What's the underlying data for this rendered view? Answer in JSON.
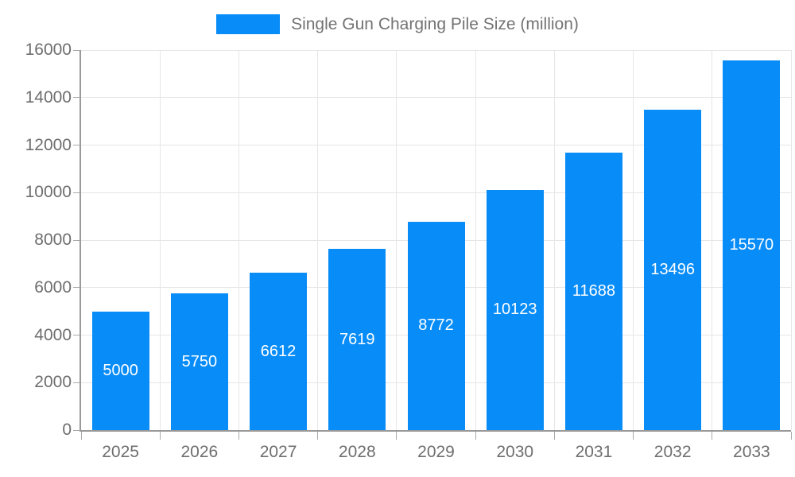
{
  "legend": {
    "label": "Single Gun Charging Pile Size (million)",
    "swatch_color": "#088cf8"
  },
  "chart_data": {
    "type": "bar",
    "title": "",
    "xlabel": "",
    "ylabel": "",
    "categories": [
      "2025",
      "2026",
      "2027",
      "2028",
      "2029",
      "2030",
      "2031",
      "2032",
      "2033"
    ],
    "series": [
      {
        "name": "Single Gun Charging Pile Size (million)",
        "values": [
          5000,
          5750,
          6612,
          7619,
          8772,
          10123,
          11688,
          13496,
          15570
        ]
      }
    ],
    "value_labels": [
      "5000",
      "5750",
      "6612",
      "7619",
      "8772",
      "10123",
      "11688",
      "13496",
      "15570"
    ],
    "ylim": [
      0,
      16000
    ],
    "ytick_step": 2000,
    "y_tick_labels": [
      "0",
      "2000",
      "4000",
      "6000",
      "8000",
      "10000",
      "12000",
      "14000",
      "16000"
    ],
    "grid": true,
    "legend_position": "top",
    "bar_color": "#088cf8",
    "value_label_color": "#ffffff"
  },
  "colors": {
    "bar": "#088cf8",
    "gridline": "#e6e6e6",
    "axis_line": "#999999",
    "tick": "#aaaaaa",
    "tick_label": "#6e6e6e",
    "legend_text": "#737373",
    "background": "#ffffff"
  }
}
